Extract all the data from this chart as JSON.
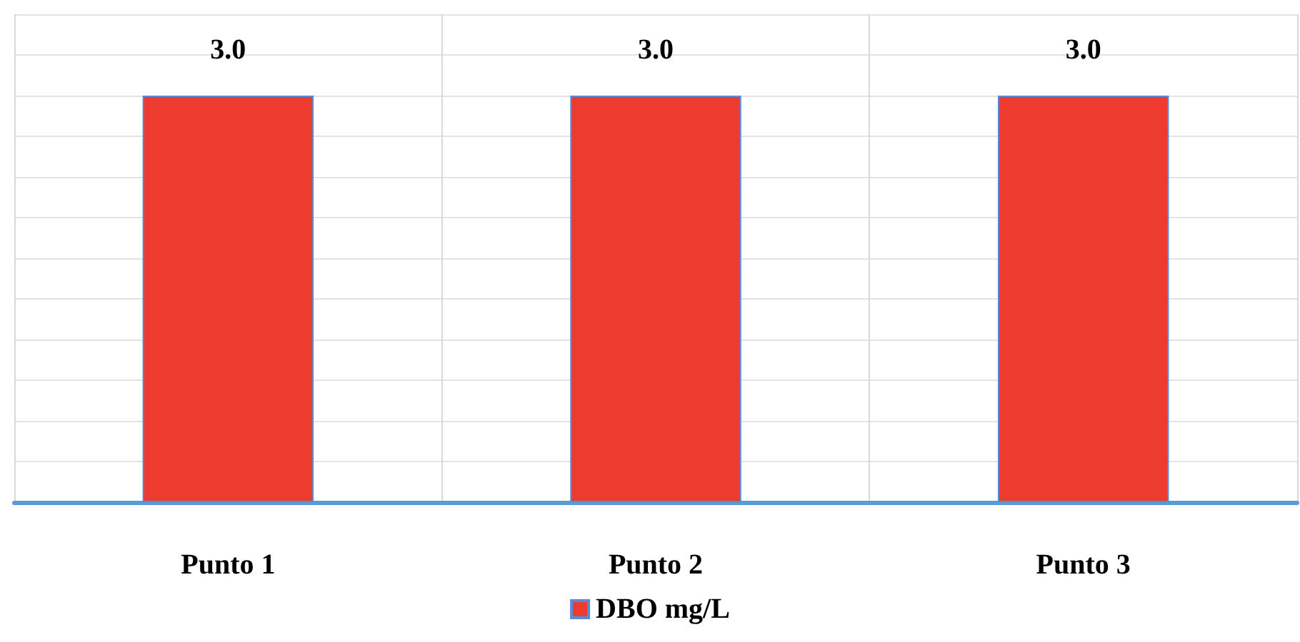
{
  "chart_data": {
    "type": "bar",
    "categories": [
      "Punto 1",
      "Punto 2",
      "Punto 3"
    ],
    "series": [
      {
        "name": "DBO mg/L",
        "color": "#ee3b2f",
        "values": [
          3.0,
          3.0,
          3.0
        ],
        "value_labels": [
          "3.0",
          "3.0",
          "3.0"
        ]
      }
    ],
    "grid": true,
    "legend": "bottom",
    "tick_labels": "x"
  }
}
